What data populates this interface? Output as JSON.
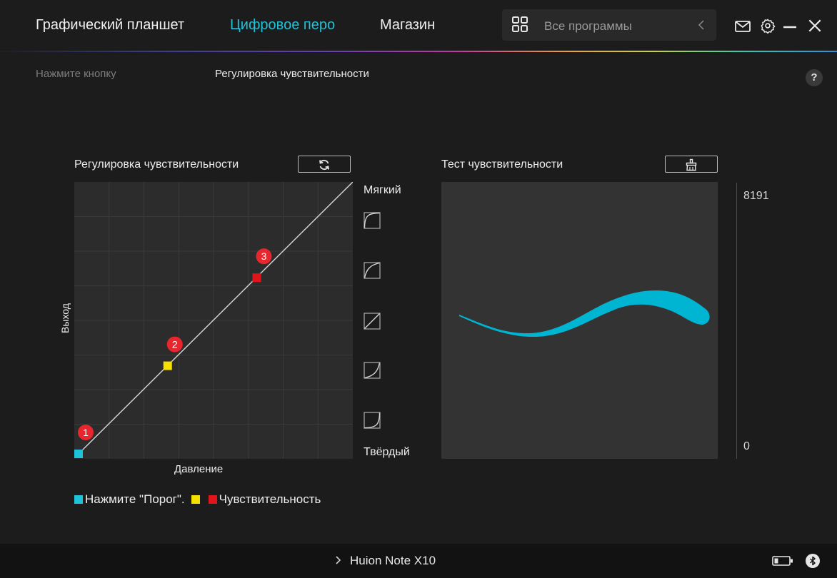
{
  "nav": {
    "tabs": [
      {
        "label": "Графический планшет",
        "active": false
      },
      {
        "label": "Цифровое перо",
        "active": true
      },
      {
        "label": "Магазин",
        "active": false
      }
    ],
    "search_label": "Все программы",
    "accent": "#1ec3d9"
  },
  "subtabs": [
    {
      "label": "Нажмите кнопку",
      "active": false
    },
    {
      "label": "Регулировка чувствительности",
      "active": true
    }
  ],
  "help_label": "?",
  "curve_panel": {
    "title": "Регулировка чувствительности",
    "y_label": "Выход",
    "x_label": "Давление",
    "soft_label": "Мягкий",
    "hard_label": "Твёрдый",
    "points": [
      {
        "number": "1",
        "color": "#1ec3d9",
        "pressure": 0.0,
        "output": 0.0
      },
      {
        "number": "2",
        "color": "#f5e000",
        "pressure": 0.33,
        "output": 0.33
      },
      {
        "number": "3",
        "color": "#e0151b",
        "pressure": 0.66,
        "output": 0.66
      }
    ]
  },
  "legend": {
    "item1_label": "Нажмите \"Порог\".",
    "item3_label": "Чувствительность"
  },
  "test_panel": {
    "title": "Тест чувствительности",
    "scale_max": "8191",
    "scale_min": "0",
    "stroke_color": "#00b5d1"
  },
  "footer": {
    "device_name": "Huion Note X10"
  }
}
